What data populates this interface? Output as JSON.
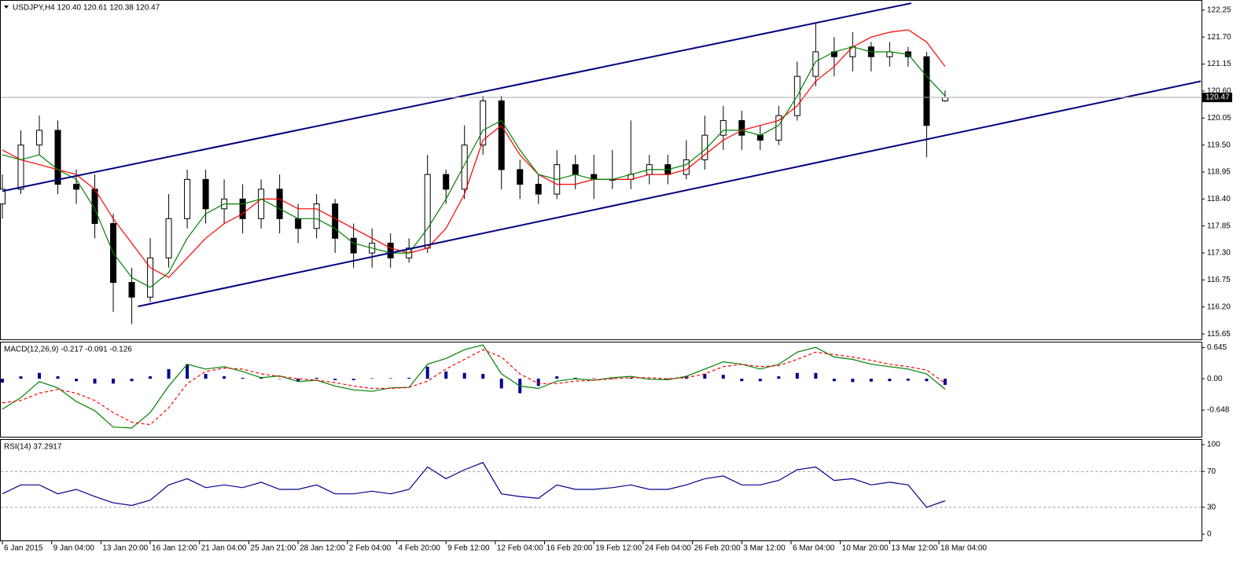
{
  "chart_data": [
    {
      "type": "candlestick",
      "title": "USDJPY,H4  120.40 120.61 120.38 120.47",
      "x": [
        0,
        6,
        12,
        18,
        24,
        30,
        36,
        42,
        48,
        54,
        60,
        66,
        72,
        78,
        84,
        90,
        96,
        102,
        108,
        114,
        120,
        126,
        132,
        138,
        144,
        150,
        156,
        162,
        168,
        174,
        180,
        186,
        192,
        198,
        204,
        210,
        216,
        222,
        228,
        234,
        240,
        246,
        252,
        258,
        264,
        270,
        276,
        282,
        288,
        294,
        300,
        306
      ],
      "open": [
        118.3,
        118.6,
        119.5,
        119.8,
        118.7,
        118.6,
        117.9,
        116.7,
        116.4,
        117.2,
        118.0,
        118.8,
        118.2,
        118.4,
        118.0,
        118.6,
        118.0,
        117.8,
        118.3,
        117.6,
        117.3,
        117.5,
        117.2,
        117.4,
        118.9,
        118.6,
        119.5,
        120.4,
        119.0,
        118.7,
        118.5,
        119.1,
        118.9,
        118.8,
        118.8,
        118.9,
        119.1,
        118.9,
        119.2,
        119.7,
        120.0,
        119.7,
        119.6,
        120.1,
        120.9,
        121.4,
        121.3,
        121.5,
        121.3,
        121.4,
        121.3,
        120.4
      ],
      "high": [
        118.9,
        119.8,
        120.1,
        120.0,
        119.0,
        118.9,
        118.1,
        117.0,
        117.6,
        118.5,
        119.0,
        119.0,
        118.8,
        118.7,
        118.8,
        118.9,
        118.3,
        118.5,
        118.4,
        117.9,
        117.8,
        117.7,
        117.6,
        119.3,
        119.0,
        119.9,
        120.5,
        120.5,
        119.2,
        118.9,
        119.4,
        119.3,
        119.3,
        119.4,
        120.0,
        119.3,
        119.3,
        119.6,
        120.1,
        120.3,
        120.2,
        119.9,
        120.3,
        121.2,
        122.0,
        121.7,
        121.8,
        121.6,
        121.6,
        121.5,
        121.4,
        120.61
      ],
      "low": [
        118.0,
        118.5,
        119.3,
        118.5,
        118.3,
        117.6,
        116.1,
        115.85,
        116.3,
        117.0,
        117.8,
        117.9,
        117.9,
        117.7,
        117.8,
        117.7,
        117.5,
        117.6,
        117.3,
        117.0,
        117.0,
        117.0,
        117.1,
        117.3,
        118.3,
        118.4,
        119.3,
        118.6,
        118.4,
        118.3,
        118.4,
        118.6,
        118.4,
        118.6,
        118.6,
        118.7,
        118.7,
        118.8,
        119.0,
        119.4,
        119.4,
        119.4,
        119.5,
        120.0,
        120.7,
        120.9,
        121.0,
        121.0,
        121.1,
        121.1,
        119.25,
        120.38
      ],
      "close": [
        118.6,
        119.5,
        119.8,
        118.7,
        118.6,
        117.9,
        116.7,
        116.4,
        117.2,
        118.0,
        118.8,
        118.2,
        118.4,
        118.0,
        118.6,
        118.0,
        117.8,
        118.3,
        117.6,
        117.3,
        117.5,
        117.2,
        117.4,
        118.9,
        118.6,
        119.5,
        120.4,
        119.0,
        118.7,
        118.5,
        119.1,
        118.9,
        118.8,
        118.8,
        118.9,
        119.1,
        118.9,
        119.2,
        119.7,
        120.0,
        119.7,
        119.6,
        120.1,
        120.9,
        121.4,
        121.3,
        121.5,
        121.3,
        121.4,
        121.3,
        119.9,
        120.47
      ],
      "up_color": "#ffffff",
      "down_color": "#000000",
      "series": [
        {
          "color": "#ff0000",
          "values": [
            119.4,
            119.2,
            119.1,
            119.0,
            118.9,
            118.6,
            118.0,
            117.5,
            117.0,
            116.8,
            117.2,
            117.6,
            117.9,
            118.1,
            118.4,
            118.4,
            118.2,
            118.2,
            118.0,
            117.8,
            117.6,
            117.4,
            117.3,
            117.4,
            117.8,
            118.5,
            119.6,
            119.9,
            119.3,
            118.9,
            118.7,
            118.7,
            118.8,
            118.8,
            118.8,
            118.9,
            118.9,
            119.0,
            119.3,
            119.6,
            119.8,
            119.9,
            120.0,
            120.3,
            120.8,
            121.1,
            121.5,
            121.7,
            121.8,
            121.85,
            121.6,
            121.1
          ]
        },
        {
          "color": "#008000",
          "values": [
            119.3,
            119.2,
            119.3,
            119.0,
            118.8,
            118.2,
            117.3,
            116.8,
            116.6,
            116.9,
            117.6,
            118.1,
            118.3,
            118.3,
            118.4,
            118.2,
            118.0,
            118.0,
            117.8,
            117.5,
            117.4,
            117.3,
            117.3,
            117.8,
            118.4,
            119.1,
            119.8,
            120.0,
            119.4,
            118.9,
            118.8,
            118.9,
            118.8,
            118.8,
            118.9,
            119.0,
            119.0,
            119.1,
            119.4,
            119.8,
            119.8,
            119.7,
            119.9,
            120.5,
            121.2,
            121.4,
            121.5,
            121.4,
            121.4,
            121.35,
            120.9,
            120.5
          ]
        }
      ],
      "channel_color": "#000080",
      "channels": [
        {
          "x": [
            0,
            295
          ],
          "y": [
            118.56,
            122.39
          ]
        },
        {
          "x": [
            44,
            389
          ],
          "y": [
            116.21,
            120.8
          ]
        }
      ],
      "xlim": [
        0,
        390
      ],
      "ylim": [
        115.54,
        122.44
      ],
      "yticks": [
        122.25,
        {
          "value": 121.7,
          "label": "121.70"
        },
        121.15,
        {
          "value": 120.6,
          "label": "120.60"
        },
        120.05,
        {
          "value": 119.5,
          "label": "119.50"
        },
        118.95,
        {
          "value": 118.4,
          "label": "118.40"
        },
        117.85,
        {
          "value": 117.3,
          "label": "117.30"
        },
        116.75,
        {
          "value": 116.2,
          "label": "116.20"
        },
        115.65
      ]
    },
    {
      "type": "combo",
      "title": "MACD(12,26,9) -0.217 -0.091 -0.126",
      "x": [
        0,
        6,
        12,
        18,
        24,
        30,
        36,
        42,
        48,
        54,
        60,
        66,
        72,
        78,
        84,
        90,
        96,
        102,
        108,
        114,
        120,
        126,
        132,
        138,
        144,
        150,
        156,
        162,
        168,
        174,
        180,
        186,
        192,
        198,
        204,
        210,
        216,
        222,
        228,
        234,
        240,
        246,
        252,
        258,
        264,
        270,
        276,
        282,
        288,
        294,
        300,
        306
      ],
      "series": [
        {
          "type": "bar",
          "color": "#00008b",
          "values": [
            -0.08,
            0.05,
            0.12,
            0.05,
            -0.05,
            -0.1,
            -0.1,
            -0.05,
            0.05,
            0.2,
            0.3,
            0.1,
            0.05,
            0.02,
            0.03,
            0.0,
            -0.05,
            0.02,
            -0.03,
            -0.03,
            0.01,
            0.01,
            0.02,
            0.25,
            0.15,
            0.12,
            0.1,
            -0.2,
            -0.3,
            -0.15,
            0.05,
            0.02,
            0.01,
            -0.01,
            0.02,
            0.0,
            -0.02,
            0.05,
            0.1,
            0.08,
            -0.05,
            -0.05,
            0.05,
            0.12,
            0.12,
            -0.05,
            -0.07,
            -0.06,
            -0.05,
            -0.04,
            -0.05,
            -0.126
          ]
        },
        {
          "type": "line",
          "color": "#008000",
          "values": [
            -0.63,
            -0.39,
            -0.06,
            -0.19,
            -0.47,
            -0.66,
            -1.0,
            -1.02,
            -0.7,
            -0.15,
            0.3,
            0.2,
            0.25,
            0.15,
            0.02,
            0.06,
            -0.06,
            -0.03,
            -0.15,
            -0.23,
            -0.26,
            -0.19,
            -0.18,
            0.3,
            0.42,
            0.6,
            0.7,
            0.1,
            -0.15,
            -0.2,
            -0.05,
            0.0,
            -0.03,
            0.02,
            0.05,
            -0.01,
            -0.02,
            0.05,
            0.2,
            0.35,
            0.3,
            0.2,
            0.3,
            0.55,
            0.65,
            0.45,
            0.4,
            0.3,
            0.25,
            0.2,
            0.1,
            -0.217
          ]
        },
        {
          "type": "line",
          "color": "#ff0000",
          "dashed": true,
          "values": [
            -0.5,
            -0.45,
            -0.3,
            -0.22,
            -0.3,
            -0.45,
            -0.7,
            -0.9,
            -0.95,
            -0.6,
            -0.1,
            0.15,
            0.22,
            0.2,
            0.1,
            0.05,
            0.0,
            -0.03,
            -0.08,
            -0.15,
            -0.2,
            -0.2,
            -0.18,
            -0.05,
            0.2,
            0.4,
            0.6,
            0.45,
            0.1,
            -0.1,
            -0.1,
            -0.05,
            -0.03,
            0.0,
            0.02,
            0.02,
            0.0,
            0.02,
            0.1,
            0.25,
            0.3,
            0.25,
            0.27,
            0.4,
            0.55,
            0.5,
            0.45,
            0.38,
            0.3,
            0.25,
            0.18,
            -0.091
          ]
        }
      ],
      "xlim": [
        0,
        390
      ],
      "ylim": [
        -1.2,
        0.75
      ],
      "yticks": [
        0.645,
        {
          "value": 0,
          "label": "0.00"
        },
        -0.648
      ]
    },
    {
      "type": "line",
      "title": "RSI(14) 37.2917",
      "x": [
        0,
        6,
        12,
        18,
        24,
        30,
        36,
        42,
        48,
        54,
        60,
        66,
        72,
        78,
        84,
        90,
        96,
        102,
        108,
        114,
        120,
        126,
        132,
        138,
        144,
        150,
        156,
        162,
        168,
        174,
        180,
        186,
        192,
        198,
        204,
        210,
        216,
        222,
        228,
        234,
        240,
        246,
        252,
        258,
        264,
        270,
        276,
        282,
        288,
        294,
        300,
        306
      ],
      "series": [
        {
          "color": "#00008b",
          "values": [
            45,
            55,
            55,
            45,
            50,
            42,
            35,
            32,
            38,
            55,
            62,
            52,
            55,
            52,
            58,
            50,
            50,
            55,
            45,
            45,
            48,
            45,
            50,
            75,
            62,
            72,
            80,
            45,
            42,
            40,
            55,
            50,
            50,
            52,
            55,
            50,
            50,
            55,
            62,
            65,
            55,
            55,
            60,
            72,
            75,
            60,
            62,
            55,
            58,
            55,
            30,
            37.2917
          ]
        }
      ],
      "levels": [
        30,
        70
      ],
      "xlim": [
        0,
        390
      ],
      "ylim": [
        -7,
        105.3
      ],
      "yticks": [
        100,
        70,
        30,
        0
      ],
      "xticks": [
        {
          "value": 0,
          "label": "6 Jan 2015"
        },
        {
          "value": 16,
          "label": "9 Jan 04:00"
        },
        {
          "value": 32,
          "label": "13 Jan 20:00"
        },
        {
          "value": 48,
          "label": "16 Jan 12:00"
        },
        {
          "value": 64,
          "label": "21 Jan 04:00"
        },
        {
          "value": 80,
          "label": "25 Jan 21:00"
        },
        {
          "value": 96,
          "label": "28 Jan 12:00"
        },
        {
          "value": 112,
          "label": "2 Feb 04:00"
        },
        {
          "value": 128,
          "label": "4 Feb 20:00"
        },
        {
          "value": 144,
          "label": "9 Feb 12:00"
        },
        {
          "value": 160,
          "label": "12 Feb 04:00"
        },
        {
          "value": 176,
          "label": "16 Feb 20:00"
        },
        {
          "value": 192,
          "label": "19 Feb 12:00"
        },
        {
          "value": 208,
          "label": "24 Feb 04:00"
        },
        {
          "value": 224,
          "label": "26 Feb 20:00"
        },
        {
          "value": 240,
          "label": "3 Mar 12:00"
        },
        {
          "value": 256,
          "label": "6 Mar 04:00"
        },
        {
          "value": 272,
          "label": "10 Mar 20:00"
        },
        {
          "value": 288,
          "label": "13 Mar 12:00"
        },
        {
          "value": 304,
          "label": "18 Mar 04:00"
        }
      ]
    }
  ]
}
